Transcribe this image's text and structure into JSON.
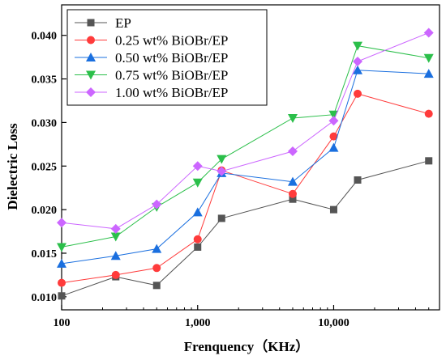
{
  "chart_data": {
    "type": "line",
    "xlabel": "Frenquency（KHz）",
    "ylabel": "Dielectric Loss",
    "x_scale": "log",
    "xlim": [
      100,
      60000
    ],
    "ylim": [
      0.0085,
      0.0435
    ],
    "x_ticks": [
      100,
      1000,
      10000
    ],
    "x_tick_labels": [
      "100",
      "1,000",
      "10,000"
    ],
    "y_ticks": [
      0.01,
      0.015,
      0.02,
      0.025,
      0.03,
      0.035,
      0.04
    ],
    "y_tick_labels": [
      "0.010",
      "0.015",
      "0.020",
      "0.025",
      "0.030",
      "0.035",
      "0.040"
    ],
    "grid": false,
    "legend_position": "top-left",
    "x": [
      100,
      250,
      500,
      1000,
      1500,
      5000,
      10000,
      15000,
      50000
    ],
    "series": [
      {
        "name": "EP",
        "color": "#555555",
        "marker": "square",
        "values": [
          0.0101,
          0.0123,
          0.0113,
          0.0157,
          0.019,
          0.0212,
          0.02,
          0.0234,
          0.0256
        ]
      },
      {
        "name": "0.25 wt% BiOBr/EP",
        "color": "#ff3b3b",
        "marker": "circle",
        "values": [
          0.0116,
          0.0125,
          0.0133,
          0.0166,
          0.0245,
          0.0218,
          0.0284,
          0.0333,
          0.031
        ]
      },
      {
        "name": "0.50 wt% BiOBr/EP",
        "color": "#1a6fdf",
        "marker": "triangle-up",
        "values": [
          0.0138,
          0.0147,
          0.0155,
          0.0197,
          0.0242,
          0.0232,
          0.0271,
          0.036,
          0.0356
        ]
      },
      {
        "name": "0.75 wt% BiOBr/EP",
        "color": "#2bbf4a",
        "marker": "triangle-down",
        "values": [
          0.0157,
          0.0169,
          0.0203,
          0.0231,
          0.0258,
          0.0305,
          0.0309,
          0.0388,
          0.0374
        ]
      },
      {
        "name": "1.00 wt% BiOBr/EP",
        "color": "#cc66ff",
        "marker": "diamond",
        "values": [
          0.0185,
          0.0178,
          0.0206,
          0.025,
          0.0244,
          0.0267,
          0.0302,
          0.037,
          0.0403
        ]
      }
    ]
  }
}
